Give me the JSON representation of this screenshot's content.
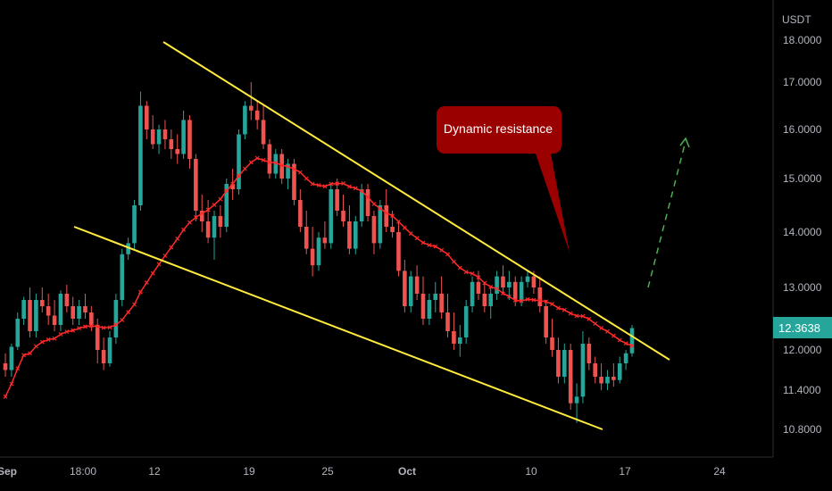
{
  "chart_data": {
    "type": "candlestick",
    "currency": "USDT",
    "last_price": "12.3638",
    "y_ticks": [
      "18.0000",
      "17.0000",
      "16.0000",
      "15.0000",
      "14.0000",
      "13.0000",
      "12.0000",
      "11.4000",
      "10.8000"
    ],
    "y_tick_values": [
      18.0,
      17.0,
      16.0,
      15.0,
      14.0,
      13.0,
      12.0,
      11.4,
      10.8
    ],
    "x_ticks": [
      "Sep",
      "18:00",
      "12",
      "19",
      "25",
      "Oct",
      "10",
      "17",
      "24"
    ],
    "annotation": "Dynamic resistance",
    "colors": {
      "up": "#26a69a",
      "down": "#ef5350",
      "trendline": "#ffeb3b",
      "moving_average": "#ff2a2a",
      "callout": "#9b0000",
      "projection": "#4caf50",
      "price_tag": "#26a69a"
    },
    "candles": [
      [
        11.8,
        11.95,
        11.6,
        11.7
      ],
      [
        11.7,
        12.1,
        11.6,
        12.05
      ],
      [
        12.05,
        12.6,
        12.0,
        12.5
      ],
      [
        12.5,
        12.85,
        12.4,
        12.8
      ],
      [
        12.8,
        13.0,
        12.2,
        12.3
      ],
      [
        12.3,
        12.9,
        12.2,
        12.8
      ],
      [
        12.8,
        13.0,
        12.6,
        12.7
      ],
      [
        12.7,
        12.9,
        12.4,
        12.55
      ],
      [
        12.55,
        12.8,
        12.3,
        12.4
      ],
      [
        12.4,
        12.95,
        12.3,
        12.9
      ],
      [
        12.9,
        13.05,
        12.6,
        12.7
      ],
      [
        12.7,
        12.85,
        12.4,
        12.5
      ],
      [
        12.5,
        12.8,
        12.4,
        12.7
      ],
      [
        12.7,
        12.9,
        12.5,
        12.6
      ],
      [
        12.6,
        12.7,
        12.3,
        12.4
      ],
      [
        12.4,
        12.5,
        11.8,
        12.0
      ],
      [
        12.0,
        12.2,
        11.7,
        11.8
      ],
      [
        11.8,
        12.3,
        11.75,
        12.2
      ],
      [
        12.2,
        12.9,
        12.1,
        12.8
      ],
      [
        12.8,
        13.7,
        12.7,
        13.6
      ],
      [
        13.6,
        13.9,
        13.5,
        13.8
      ],
      [
        13.8,
        14.6,
        13.7,
        14.5
      ],
      [
        14.5,
        16.8,
        14.4,
        16.5
      ],
      [
        16.5,
        16.6,
        15.8,
        16.0
      ],
      [
        16.0,
        16.3,
        15.6,
        15.7
      ],
      [
        15.7,
        16.1,
        15.5,
        16.0
      ],
      [
        16.0,
        16.2,
        15.6,
        15.8
      ],
      [
        15.8,
        16.0,
        15.4,
        15.6
      ],
      [
        15.6,
        15.9,
        15.3,
        15.5
      ],
      [
        15.5,
        16.4,
        15.4,
        16.2
      ],
      [
        16.2,
        16.3,
        15.2,
        15.4
      ],
      [
        15.4,
        15.5,
        14.2,
        14.4
      ],
      [
        14.4,
        14.7,
        14.0,
        14.2
      ],
      [
        14.2,
        14.6,
        13.8,
        13.9
      ],
      [
        13.9,
        14.4,
        13.5,
        14.3
      ],
      [
        14.3,
        14.5,
        13.9,
        14.1
      ],
      [
        14.1,
        15.0,
        14.0,
        14.9
      ],
      [
        14.9,
        15.2,
        14.6,
        14.8
      ],
      [
        14.8,
        16.0,
        14.7,
        15.9
      ],
      [
        15.9,
        16.6,
        15.8,
        16.5
      ],
      [
        16.5,
        17.0,
        16.2,
        16.4
      ],
      [
        16.4,
        16.6,
        16.0,
        16.2
      ],
      [
        16.2,
        16.5,
        15.6,
        15.7
      ],
      [
        15.7,
        15.8,
        15.0,
        15.1
      ],
      [
        15.1,
        15.6,
        15.0,
        15.5
      ],
      [
        15.5,
        15.6,
        14.9,
        15.0
      ],
      [
        15.0,
        15.4,
        14.8,
        15.3
      ],
      [
        15.3,
        15.4,
        14.5,
        14.6
      ],
      [
        14.6,
        14.8,
        14.0,
        14.1
      ],
      [
        14.1,
        14.4,
        13.6,
        13.7
      ],
      [
        13.7,
        14.1,
        13.2,
        13.4
      ],
      [
        13.4,
        14.0,
        13.3,
        13.9
      ],
      [
        13.9,
        14.2,
        13.7,
        13.8
      ],
      [
        13.8,
        14.9,
        13.7,
        14.8
      ],
      [
        14.8,
        15.0,
        14.3,
        14.4
      ],
      [
        14.4,
        14.7,
        14.1,
        14.2
      ],
      [
        14.2,
        14.5,
        13.6,
        13.7
      ],
      [
        13.7,
        14.3,
        13.6,
        14.2
      ],
      [
        14.2,
        14.9,
        14.1,
        14.8
      ],
      [
        14.8,
        14.9,
        14.2,
        14.3
      ],
      [
        14.3,
        14.4,
        13.6,
        13.8
      ],
      [
        13.8,
        14.6,
        13.7,
        14.5
      ],
      [
        14.5,
        14.8,
        14.0,
        14.1
      ],
      [
        14.1,
        14.4,
        13.9,
        14.0
      ],
      [
        14.0,
        14.2,
        13.2,
        13.3
      ],
      [
        13.3,
        13.5,
        12.6,
        12.7
      ],
      [
        12.7,
        13.3,
        12.6,
        13.2
      ],
      [
        13.2,
        13.4,
        12.8,
        12.9
      ],
      [
        12.9,
        13.2,
        12.4,
        12.5
      ],
      [
        12.5,
        12.9,
        12.4,
        12.8
      ],
      [
        12.8,
        13.1,
        12.6,
        12.9
      ],
      [
        12.9,
        13.2,
        12.5,
        12.6
      ],
      [
        12.6,
        12.9,
        12.2,
        12.3
      ],
      [
        12.3,
        12.6,
        12.0,
        12.1
      ],
      [
        12.1,
        12.4,
        11.9,
        12.2
      ],
      [
        12.2,
        12.8,
        12.1,
        12.7
      ],
      [
        12.7,
        13.2,
        12.6,
        13.1
      ],
      [
        13.1,
        13.3,
        12.8,
        12.9
      ],
      [
        12.9,
        13.1,
        12.6,
        12.7
      ],
      [
        12.7,
        13.0,
        12.5,
        12.9
      ],
      [
        12.9,
        13.3,
        12.8,
        13.2
      ],
      [
        13.2,
        13.4,
        12.9,
        13.0
      ],
      [
        13.0,
        13.3,
        12.8,
        13.1
      ],
      [
        13.1,
        13.2,
        12.7,
        12.8
      ],
      [
        12.8,
        13.2,
        12.7,
        13.1
      ],
      [
        13.1,
        13.3,
        13.0,
        13.2
      ],
      [
        13.2,
        13.3,
        12.9,
        13.0
      ],
      [
        13.0,
        13.2,
        12.6,
        12.7
      ],
      [
        12.7,
        12.8,
        12.1,
        12.2
      ],
      [
        12.2,
        12.5,
        11.9,
        12.0
      ],
      [
        12.0,
        12.2,
        11.5,
        11.6
      ],
      [
        11.6,
        12.1,
        11.5,
        12.0
      ],
      [
        12.0,
        12.1,
        11.1,
        11.2
      ],
      [
        11.2,
        11.5,
        10.9,
        11.3
      ],
      [
        11.3,
        12.3,
        11.2,
        12.1
      ],
      [
        12.1,
        12.2,
        11.7,
        11.8
      ],
      [
        11.8,
        11.9,
        11.5,
        11.6
      ],
      [
        11.6,
        11.8,
        11.4,
        11.5
      ],
      [
        11.5,
        11.7,
        11.4,
        11.6
      ],
      [
        11.6,
        11.8,
        11.45,
        11.55
      ],
      [
        11.55,
        11.9,
        11.5,
        11.8
      ],
      [
        11.8,
        12.0,
        11.7,
        11.95
      ],
      [
        11.95,
        12.4,
        11.9,
        12.35
      ]
    ]
  }
}
